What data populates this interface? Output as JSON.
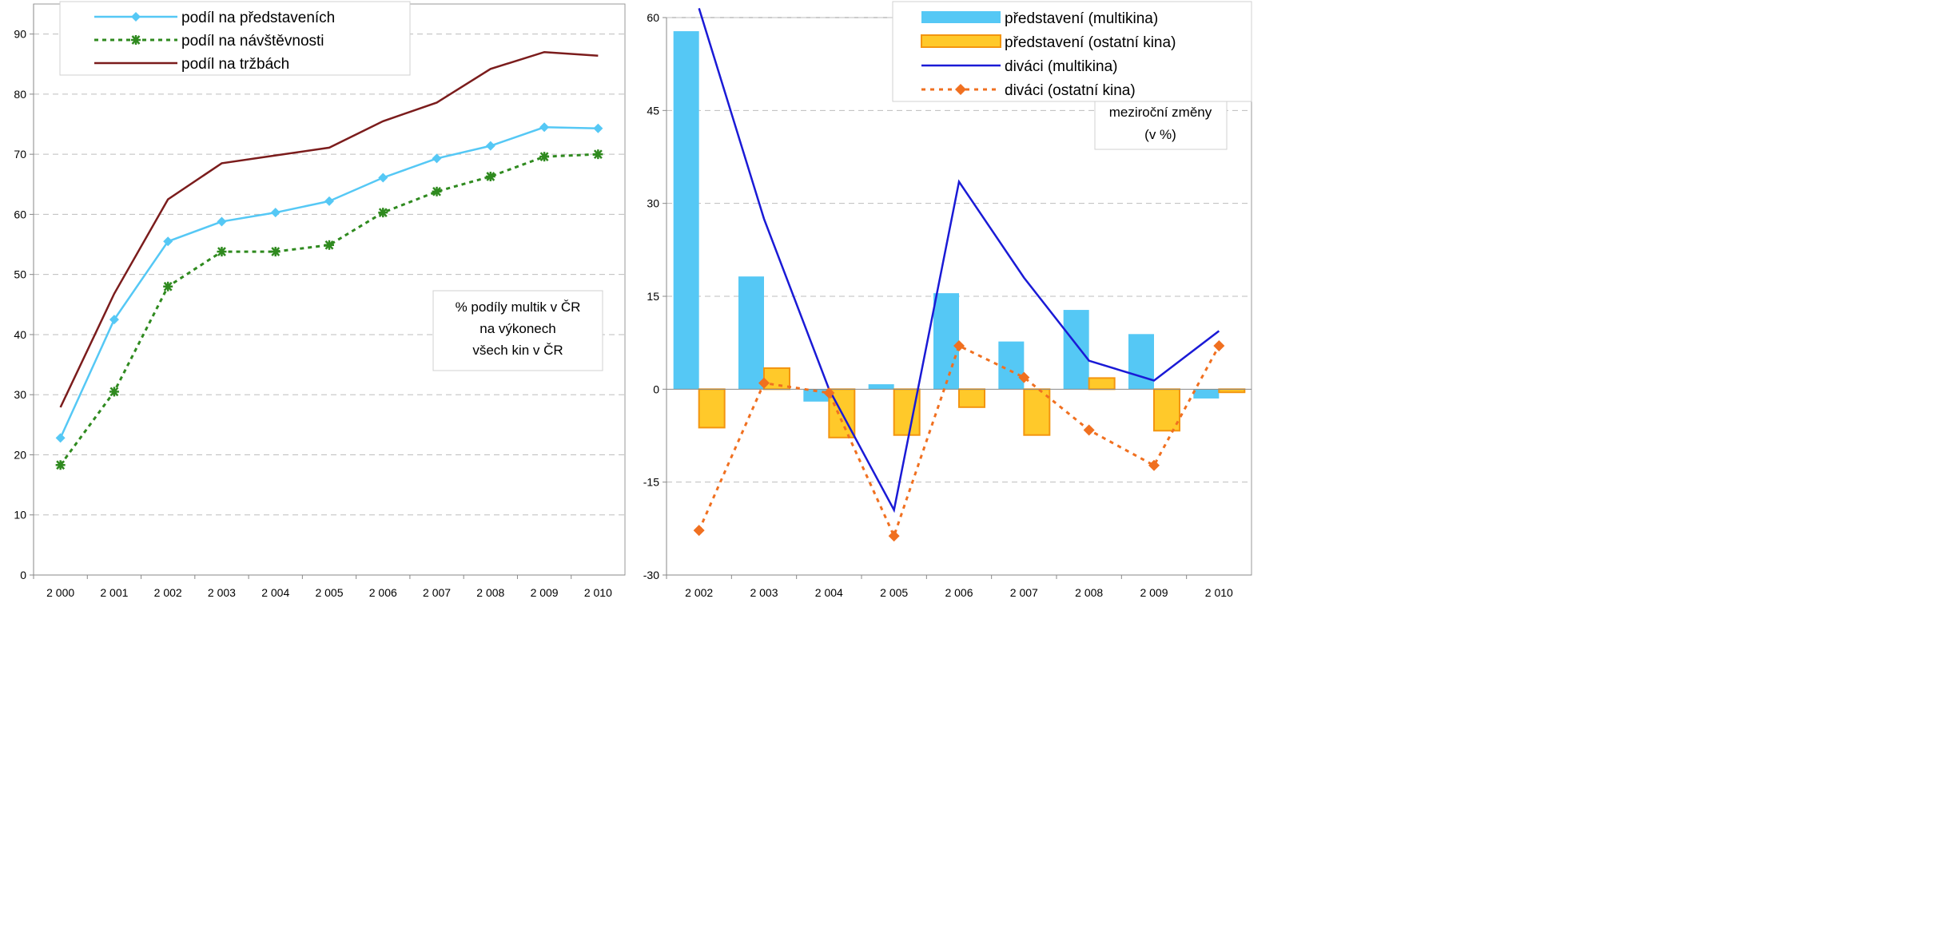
{
  "chart_data": [
    {
      "type": "line",
      "x": [
        "2 000",
        "2 001",
        "2 002",
        "2 003",
        "2 004",
        "2 005",
        "2 006",
        "2 007",
        "2 008",
        "2 009",
        "2 010"
      ],
      "ylim": [
        0,
        95
      ],
      "yticks": [
        "0",
        "10",
        "20",
        "30",
        "40",
        "50",
        "60",
        "70",
        "80",
        "90"
      ],
      "series": [
        {
          "name": "podíl na představeních",
          "color": "#55c8f5",
          "marker": "diamond",
          "dash": "solid",
          "values": [
            22.8,
            42.5,
            55.5,
            58.8,
            60.3,
            62.2,
            66.1,
            69.3,
            71.4,
            74.5,
            74.3
          ]
        },
        {
          "name": "podíl na návštěvnosti",
          "color": "#2f8a1f",
          "marker": "asterisk",
          "dash": "dotted",
          "values": [
            18.3,
            30.5,
            48.0,
            53.8,
            53.8,
            54.9,
            60.3,
            63.8,
            66.3,
            69.6,
            70.0
          ]
        },
        {
          "name": "podíl na tržbách",
          "color": "#7b1c1c",
          "marker": "none",
          "dash": "solid",
          "values": [
            27.9,
            46.8,
            62.5,
            68.5,
            69.8,
            71.1,
            75.5,
            78.6,
            84.2,
            87.0,
            86.4
          ]
        }
      ],
      "annotation": [
        "% podíly multik v ČR",
        "na výkonech",
        "všech kin v ČR"
      ],
      "legend": "top-left",
      "grid": "horizontal dashed"
    },
    {
      "type": "bar",
      "categories": [
        "2 002",
        "2 003",
        "2 004",
        "2 005",
        "2 006",
        "2 007",
        "2 008",
        "2 009",
        "2 010"
      ],
      "ylim": [
        -30,
        60
      ],
      "yticks": [
        "60",
        "45",
        "30",
        "15",
        "0",
        "-15",
        "-30"
      ],
      "series": [
        {
          "name": "představení (multikina)",
          "kind": "bar",
          "color": "#55c8f5",
          "values": [
            57.8,
            18.2,
            -2.0,
            0.8,
            15.5,
            7.7,
            12.8,
            8.9,
            -1.5
          ]
        },
        {
          "name": "představení (ostatní kina)",
          "kind": "bar",
          "color": "#ffc92a",
          "edge": "#f3950f",
          "values": [
            -6.2,
            3.4,
            -7.8,
            -7.4,
            -2.9,
            -7.4,
            1.8,
            -6.7,
            -0.5
          ]
        },
        {
          "name": "diváci (multikina)",
          "kind": "line",
          "color": "#1a1ad6",
          "values": [
            61.5,
            27.5,
            0.0,
            -19.5,
            33.5,
            18.0,
            4.6,
            1.4,
            9.4
          ]
        },
        {
          "name": "diváci (ostatní kina)",
          "kind": "line-dotted",
          "color": "#f07020",
          "marker": "diamond",
          "values": [
            -22.8,
            1.0,
            -0.6,
            -23.7,
            7.0,
            1.9,
            -6.6,
            -12.3,
            7.0
          ]
        }
      ],
      "annotation": [
        "meziroční změny",
        "(v %)"
      ],
      "legend": "top-right",
      "grid": "horizontal dashed"
    }
  ]
}
